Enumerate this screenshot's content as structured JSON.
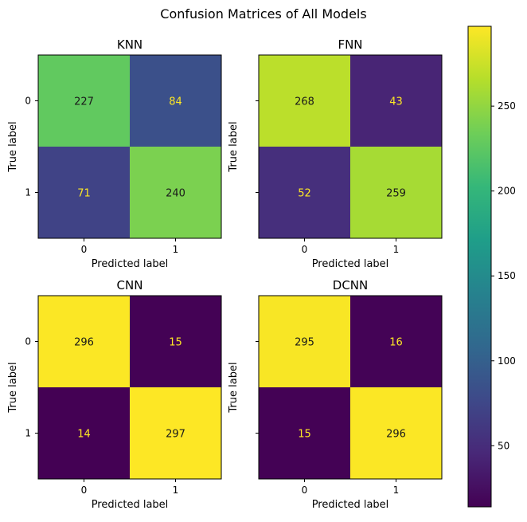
{
  "figure": {
    "title": "Confusion Matrices of All Models"
  },
  "chart_data": [
    {
      "type": "heatmap",
      "title": "KNN",
      "xlabel": "Predicted label",
      "ylabel": "True label",
      "x_categories": [
        "0",
        "1"
      ],
      "y_categories": [
        "0",
        "1"
      ],
      "values": [
        [
          227,
          84
        ],
        [
          71,
          240
        ]
      ],
      "show_y_tick_labels": true
    },
    {
      "type": "heatmap",
      "title": "FNN",
      "xlabel": "Predicted label",
      "ylabel": "True label",
      "x_categories": [
        "0",
        "1"
      ],
      "y_categories": [
        "0",
        "1"
      ],
      "values": [
        [
          268,
          43
        ],
        [
          52,
          259
        ]
      ],
      "show_y_tick_labels": false
    },
    {
      "type": "heatmap",
      "title": "CNN",
      "xlabel": "Predicted label",
      "ylabel": "True label",
      "x_categories": [
        "0",
        "1"
      ],
      "y_categories": [
        "0",
        "1"
      ],
      "values": [
        [
          296,
          15
        ],
        [
          14,
          297
        ]
      ],
      "show_y_tick_labels": true
    },
    {
      "type": "heatmap",
      "title": "DCNN",
      "xlabel": "Predicted label",
      "ylabel": "True label",
      "x_categories": [
        "0",
        "1"
      ],
      "y_categories": [
        "0",
        "1"
      ],
      "values": [
        [
          295,
          16
        ],
        [
          15,
          296
        ]
      ],
      "show_y_tick_labels": false
    }
  ],
  "colorbar": {
    "colormap": "viridis",
    "vmin": 14,
    "vmax": 297,
    "ticks": [
      50,
      100,
      150,
      200,
      250
    ]
  },
  "colors": {
    "text_on_dark": "#fde725",
    "text_on_light": "#1a1a1a"
  }
}
